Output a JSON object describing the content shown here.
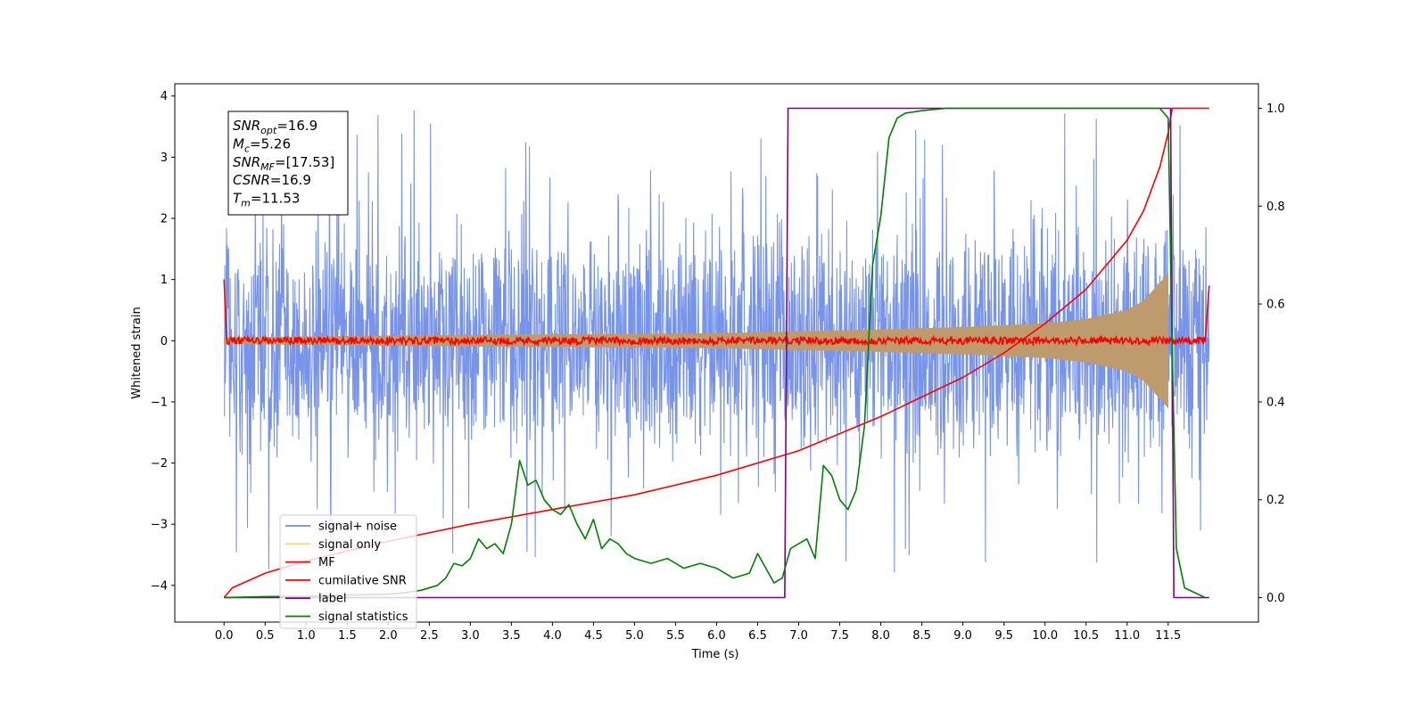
{
  "chart_data": {
    "type": "line",
    "title": "",
    "xlabel": "Time (s)",
    "ylabel": "Whitened strain",
    "xlim": [
      -0.6,
      12.6
    ],
    "ylim": [
      -4.6,
      4.2
    ],
    "y2lim": [
      -0.05,
      1.05
    ],
    "grid": false,
    "legend_position": "bottom-left",
    "xticks": [
      "0.0",
      "0.5",
      "1.0",
      "1.5",
      "2.0",
      "2.5",
      "3.0",
      "3.5",
      "4.0",
      "4.5",
      "5.0",
      "5.5",
      "6.0",
      "6.5",
      "7.0",
      "7.5",
      "8.0",
      "8.5",
      "9.0",
      "9.5",
      "10.0",
      "10.5",
      "11.0",
      "11.5"
    ],
    "yticks": [
      "−4",
      "−3",
      "−2",
      "−1",
      "0",
      "1",
      "2",
      "3",
      "4"
    ],
    "y2ticks": [
      "0.0",
      "0.2",
      "0.4",
      "0.6",
      "0.8",
      "1.0"
    ],
    "annotation": [
      {
        "sym": "SNR",
        "sub": "opt",
        "val": "=16.9"
      },
      {
        "sym": "M",
        "sub": "c",
        "val": "=5.26"
      },
      {
        "sym": "SNR",
        "sub": "MF",
        "val": "=[17.53]"
      },
      {
        "sym": "CSNR",
        "sub": "",
        "val": "=16.9"
      },
      {
        "sym": "T",
        "sub": "m",
        "val": "=11.53"
      }
    ],
    "series": [
      {
        "name": "signal+ noise",
        "color": "#6b8be8",
        "axis": "left",
        "kind": "noise_band",
        "envelope": 2.2,
        "spike_max": 3.8
      },
      {
        "name": "signal only",
        "color": "#fdd87e",
        "axis": "left",
        "kind": "chirp_envelope",
        "x": [
          0,
          2,
          4,
          6,
          8,
          9,
          10,
          10.5,
          11,
          11.2,
          11.4,
          11.5
        ],
        "amplitude": [
          0.05,
          0.08,
          0.1,
          0.12,
          0.18,
          0.22,
          0.28,
          0.35,
          0.5,
          0.65,
          0.95,
          1.1
        ]
      },
      {
        "name": "MF",
        "color": "#ff0000",
        "axis": "left",
        "kind": "residual",
        "level": 0.0,
        "jitter": 0.06,
        "edge_values": [
          1.0,
          0.9
        ]
      },
      {
        "name": "cumilative SNR",
        "color": "#ff0000",
        "axis": "right",
        "x": [
          0,
          0.1,
          0.5,
          1,
          1.5,
          2,
          3,
          4,
          5,
          6,
          7,
          8,
          8.5,
          9,
          9.5,
          10,
          10.5,
          11,
          11.2,
          11.4,
          11.5,
          11.55,
          12.0
        ],
        "y": [
          0.0,
          0.02,
          0.05,
          0.075,
          0.095,
          0.115,
          0.15,
          0.18,
          0.21,
          0.25,
          0.3,
          0.37,
          0.41,
          0.45,
          0.5,
          0.56,
          0.63,
          0.73,
          0.79,
          0.88,
          0.95,
          1.0,
          1.0
        ]
      },
      {
        "name": "label",
        "color": "#800080",
        "axis": "right",
        "x": [
          0,
          6.83,
          6.87,
          11.53,
          11.57,
          12.0
        ],
        "y": [
          0,
          0,
          1,
          1,
          0,
          0
        ]
      },
      {
        "name": "signal statistics",
        "color": "#008000",
        "axis": "right",
        "x": [
          0,
          0.5,
          1,
          1.5,
          2,
          2.2,
          2.4,
          2.6,
          2.7,
          2.8,
          2.9,
          3.0,
          3.1,
          3.2,
          3.3,
          3.4,
          3.5,
          3.6,
          3.7,
          3.8,
          3.9,
          4.0,
          4.1,
          4.2,
          4.3,
          4.4,
          4.5,
          4.6,
          4.7,
          4.8,
          4.9,
          5.0,
          5.2,
          5.4,
          5.6,
          5.8,
          6.0,
          6.2,
          6.4,
          6.5,
          6.6,
          6.7,
          6.8,
          6.9,
          7.0,
          7.1,
          7.2,
          7.3,
          7.4,
          7.5,
          7.6,
          7.7,
          7.8,
          7.9,
          8.0,
          8.1,
          8.2,
          8.3,
          8.5,
          8.8,
          9.0,
          10.0,
          11.0,
          11.4,
          11.5,
          11.55,
          11.6,
          11.7,
          11.95
        ],
        "y": [
          0.0,
          0.002,
          0.003,
          0.005,
          0.007,
          0.01,
          0.015,
          0.025,
          0.04,
          0.07,
          0.065,
          0.08,
          0.12,
          0.1,
          0.11,
          0.09,
          0.15,
          0.28,
          0.23,
          0.24,
          0.2,
          0.18,
          0.17,
          0.19,
          0.15,
          0.12,
          0.16,
          0.1,
          0.12,
          0.11,
          0.09,
          0.08,
          0.07,
          0.08,
          0.06,
          0.07,
          0.06,
          0.04,
          0.05,
          0.09,
          0.06,
          0.03,
          0.04,
          0.1,
          0.11,
          0.12,
          0.08,
          0.27,
          0.25,
          0.2,
          0.18,
          0.22,
          0.35,
          0.68,
          0.78,
          0.94,
          0.98,
          0.99,
          0.995,
          1.0,
          1.0,
          1.0,
          1.0,
          1.0,
          0.98,
          0.5,
          0.1,
          0.02,
          0.0
        ]
      }
    ]
  }
}
